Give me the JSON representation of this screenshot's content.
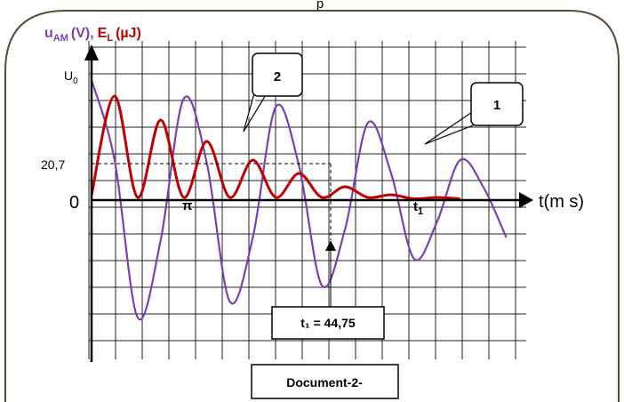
{
  "chart_data": {
    "type": "line",
    "title_fragment": "p",
    "ylabel_voltage": {
      "main": "u",
      "sub": "AM",
      "unit": "(V),"
    },
    "ylabel_energy": {
      "main": "E",
      "sub": "L",
      "unit": "(µJ)"
    },
    "xlabel": "t(m s)",
    "origin_label": "0",
    "u0_label": {
      "main": "U",
      "sub": "0"
    },
    "y_marker_label": "20,7",
    "pi_label": "π",
    "t1_axis_label": {
      "main": "t",
      "sub": "1"
    },
    "t1_box": "t₁ = 44,75",
    "callout_1": "1",
    "callout_2": "2",
    "document_label": "Document-2-",
    "series": [
      {
        "name": "1",
        "curve": "damped sinusoid",
        "color": "#7a3fb5",
        "x": [
          0,
          3.6,
          7.2,
          10.8,
          14.4,
          18,
          21.6,
          25.2,
          28.8,
          32.4,
          36,
          39.6,
          43.2,
          46.8,
          50.4,
          54,
          57.6,
          61.2,
          64.8
        ],
        "y": [
          4.5,
          1.5,
          -4.4,
          -1.5,
          3.8,
          1.4,
          -3.8,
          -1.4,
          3.5,
          1.3,
          -3.2,
          -1.1,
          2.9,
          1.0,
          -2.2,
          -0.8,
          1.5,
          0.5,
          -1.4
        ]
      },
      {
        "name": "2",
        "curve": "oscillating energy",
        "color": "#c00000",
        "x": [
          0,
          3.6,
          7.2,
          10.8,
          14.4,
          18,
          21.6,
          25.2,
          28.8,
          32.4,
          36,
          39.6,
          43.2,
          46.8,
          50.4,
          54,
          57.6
        ],
        "y": [
          0.2,
          3.9,
          0.1,
          3.0,
          0.1,
          2.2,
          0.1,
          1.5,
          0.1,
          1.0,
          0.1,
          0.5,
          0.1,
          0.2,
          0.05,
          0.1,
          0.05
        ]
      }
    ]
  },
  "colors": {
    "purple": "#7a3fb5",
    "red": "#c00000",
    "grid": "#222222",
    "frame": "#5a4a3a"
  }
}
